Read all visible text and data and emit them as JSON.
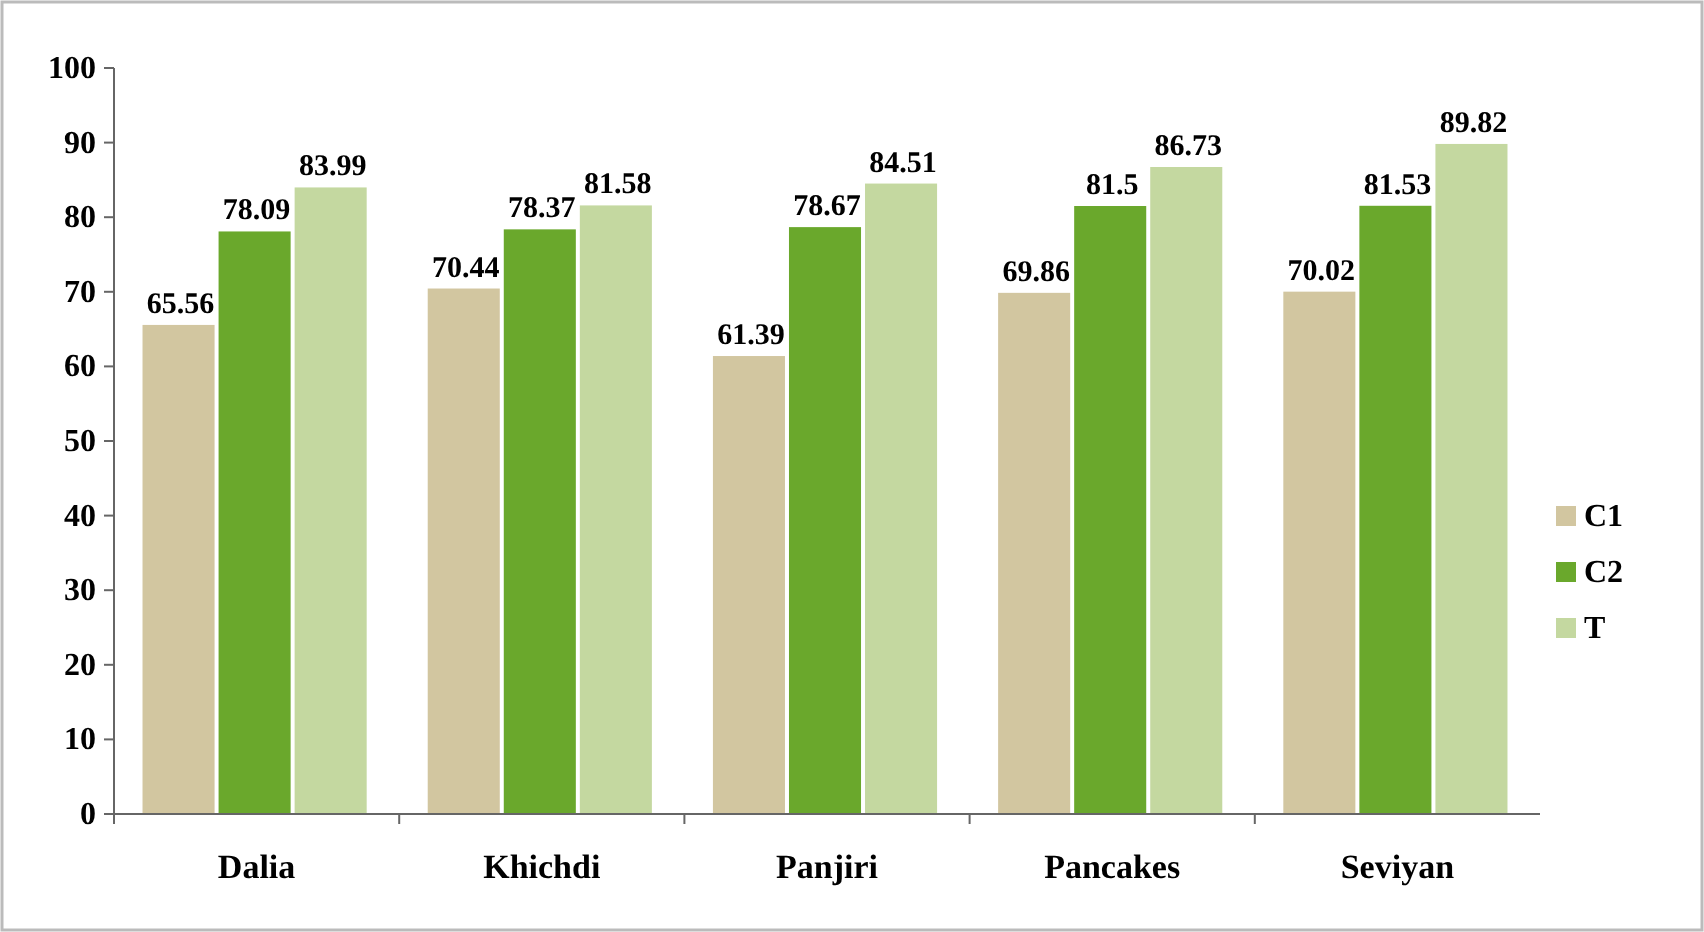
{
  "chart_data": {
    "type": "bar",
    "categories": [
      "Dalia",
      "Khichdi",
      "Panjiri",
      "Pancakes",
      "Seviyan"
    ],
    "series": [
      {
        "name": "C1",
        "color": "#d2c6a0",
        "values": [
          65.56,
          70.44,
          61.39,
          69.86,
          70.02
        ]
      },
      {
        "name": "C2",
        "color": "#6aa82c",
        "values": [
          78.09,
          78.37,
          78.67,
          81.5,
          81.53
        ]
      },
      {
        "name": "T",
        "color": "#c4d8a0",
        "values": [
          83.99,
          81.58,
          84.51,
          86.73,
          89.82
        ]
      }
    ],
    "ylim": [
      0,
      100
    ],
    "yticks": [
      0,
      10,
      20,
      30,
      40,
      50,
      60,
      70,
      80,
      90,
      100
    ],
    "grid": false,
    "legend": "right",
    "data_labels": true
  }
}
